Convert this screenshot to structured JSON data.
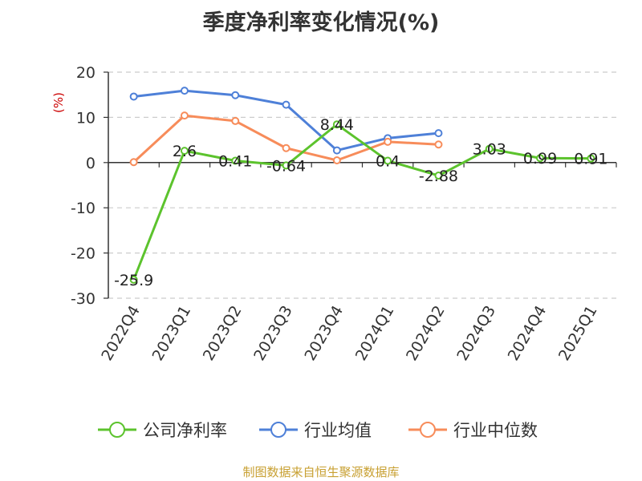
{
  "chart_data": {
    "type": "line",
    "title": "季度净利率变化情况(%)",
    "unit_label": "(%)",
    "source": "制图数据来自恒生聚源数据库",
    "categories": [
      "2022Q4",
      "2023Q1",
      "2023Q2",
      "2023Q3",
      "2023Q4",
      "2024Q1",
      "2024Q2",
      "2024Q3",
      "2024Q4",
      "2025Q1"
    ],
    "ylim": [
      -30,
      20
    ],
    "yticks": [
      20,
      10,
      0,
      -10,
      -20,
      -30
    ],
    "grid": true,
    "legend_position": "bottom",
    "series": [
      {
        "name": "公司净利率",
        "color": "#5cc32d",
        "values": [
          -25.9,
          2.6,
          0.41,
          -0.64,
          8.44,
          0.4,
          -2.88,
          3.03,
          0.99,
          0.91
        ],
        "labels": [
          "-25.9",
          "2.6",
          "0.41",
          "-0.64",
          "8.44",
          "0.4",
          "-2.88",
          "3.03",
          "0.99",
          "0.91"
        ]
      },
      {
        "name": "行业均值",
        "color": "#4e80d8",
        "values": [
          14.6,
          15.9,
          14.9,
          12.8,
          2.7,
          5.4,
          6.5,
          null,
          null,
          null
        ]
      },
      {
        "name": "行业中位数",
        "color": "#f78c5a",
        "values": [
          0.1,
          10.4,
          9.2,
          3.2,
          0.5,
          4.6,
          4.0,
          null,
          null,
          null
        ]
      }
    ]
  }
}
